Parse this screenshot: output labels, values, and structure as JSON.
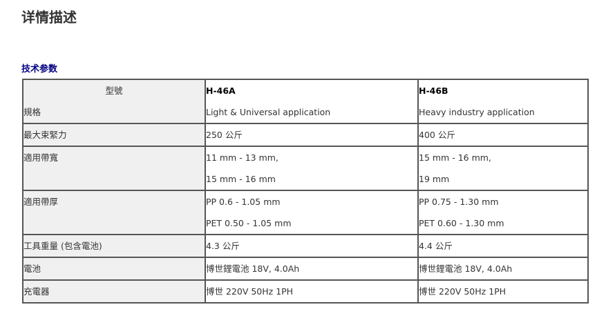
{
  "title": "详情描述",
  "section": "技术参数",
  "table": {
    "header": {
      "label1": "型號",
      "label2": "規格",
      "a_model": "H-46A",
      "a_spec": "Light & Universal application",
      "b_model": "H-46B",
      "b_spec": "Heavy industry application"
    },
    "rows": [
      {
        "label": "最大束緊力",
        "a": [
          "250 公斤"
        ],
        "b": [
          "400 公斤"
        ]
      },
      {
        "label": "適用帶寬",
        "a": [
          "11 mm - 13 mm,",
          "15 mm - 16 mm"
        ],
        "b": [
          "15 mm - 16 mm,",
          "19 mm"
        ]
      },
      {
        "label": "適用帶厚",
        "a": [
          "PP 0.6 - 1.05 mm",
          "PET 0.50 - 1.05 mm"
        ],
        "b": [
          "PP 0.75 - 1.30 mm",
          "PET 0.60 - 1.30 mm"
        ]
      },
      {
        "label": "工具重量 (包含電池)",
        "a": [
          "4.3 公斤"
        ],
        "b": [
          "4.4 公斤"
        ]
      },
      {
        "label": "電池",
        "a": [
          "博世鋰電池 18V, 4.0Ah"
        ],
        "b": [
          "博世鋰電池 18V, 4.0Ah"
        ]
      },
      {
        "label": "充電器",
        "a": [
          "博世 220V 50Hz 1PH"
        ],
        "b": [
          "博世 220V 50Hz 1PH"
        ]
      }
    ]
  }
}
